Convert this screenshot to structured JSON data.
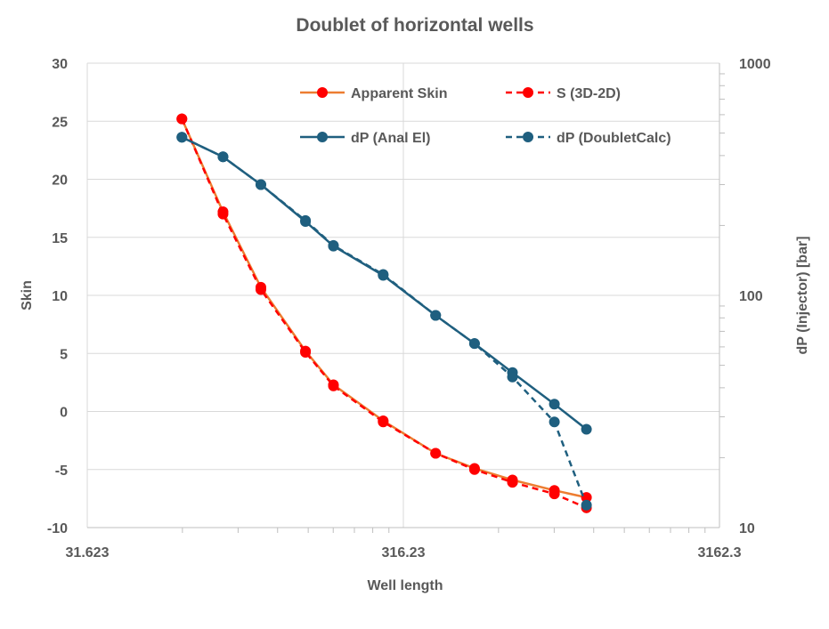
{
  "chart_data": {
    "type": "line",
    "title": "Doublet of horizontal wells",
    "xlabel": "Well length",
    "ylabel": "Skin",
    "y2label": "dP (Injector) [bar]",
    "x_scale": "log",
    "y2_scale": "log",
    "xlim": [
      31.623,
      3162.3
    ],
    "ylim": [
      -10,
      30
    ],
    "y2lim": [
      10,
      1000
    ],
    "x_tick_labels": [
      "31.623",
      "316.23",
      "3162.3"
    ],
    "y_tick_labels": [
      "30",
      "25",
      "20",
      "15",
      "10",
      "5",
      "0",
      "-5",
      "-10"
    ],
    "y2_tick_labels": [
      "1000",
      "100",
      "10"
    ],
    "grid": true,
    "legend_position": "top-right",
    "series": [
      {
        "name": "Apparent Skin",
        "axis": "left",
        "color": "#ed7d31",
        "marker_color": "#ff0000",
        "dash": "solid",
        "x": [
          63,
          85,
          112,
          155,
          190,
          273,
          400,
          531,
          700,
          950,
          1200
        ],
        "y": [
          25.2,
          17.2,
          10.7,
          5.2,
          2.3,
          -0.8,
          -3.6,
          -4.9,
          -5.9,
          -6.8,
          -7.4
        ]
      },
      {
        "name": "S (3D-2D)",
        "axis": "left",
        "color": "#ff0000",
        "marker_color": "#ff0000",
        "dash": "dashed",
        "x": [
          63,
          85,
          112,
          155,
          190,
          273,
          400,
          531,
          700,
          950,
          1200
        ],
        "y": [
          25.2,
          17.0,
          10.5,
          5.1,
          2.2,
          -0.9,
          -3.6,
          -5.0,
          -6.1,
          -7.1,
          -8.3
        ]
      },
      {
        "name": "dP (Anal El)",
        "axis": "right",
        "color": "#1f5f7f",
        "marker_color": "#1f5f7f",
        "dash": "solid",
        "x": [
          63,
          85,
          112,
          155,
          190,
          273,
          400,
          531,
          700,
          950,
          1200
        ],
        "y": [
          480,
          395,
          300,
          208,
          163,
          122,
          82,
          62,
          46.5,
          34,
          26.5
        ]
      },
      {
        "name": "dP (DoubletCalc)",
        "axis": "right",
        "color": "#1f5f7f",
        "marker_color": "#1f5f7f",
        "dash": "dashed",
        "x": [
          63,
          85,
          112,
          155,
          190,
          273,
          400,
          531,
          700,
          950,
          1200
        ],
        "y": [
          480,
          395,
          300,
          210,
          164,
          123,
          82,
          62,
          44.5,
          28.5,
          12.5
        ]
      }
    ]
  }
}
